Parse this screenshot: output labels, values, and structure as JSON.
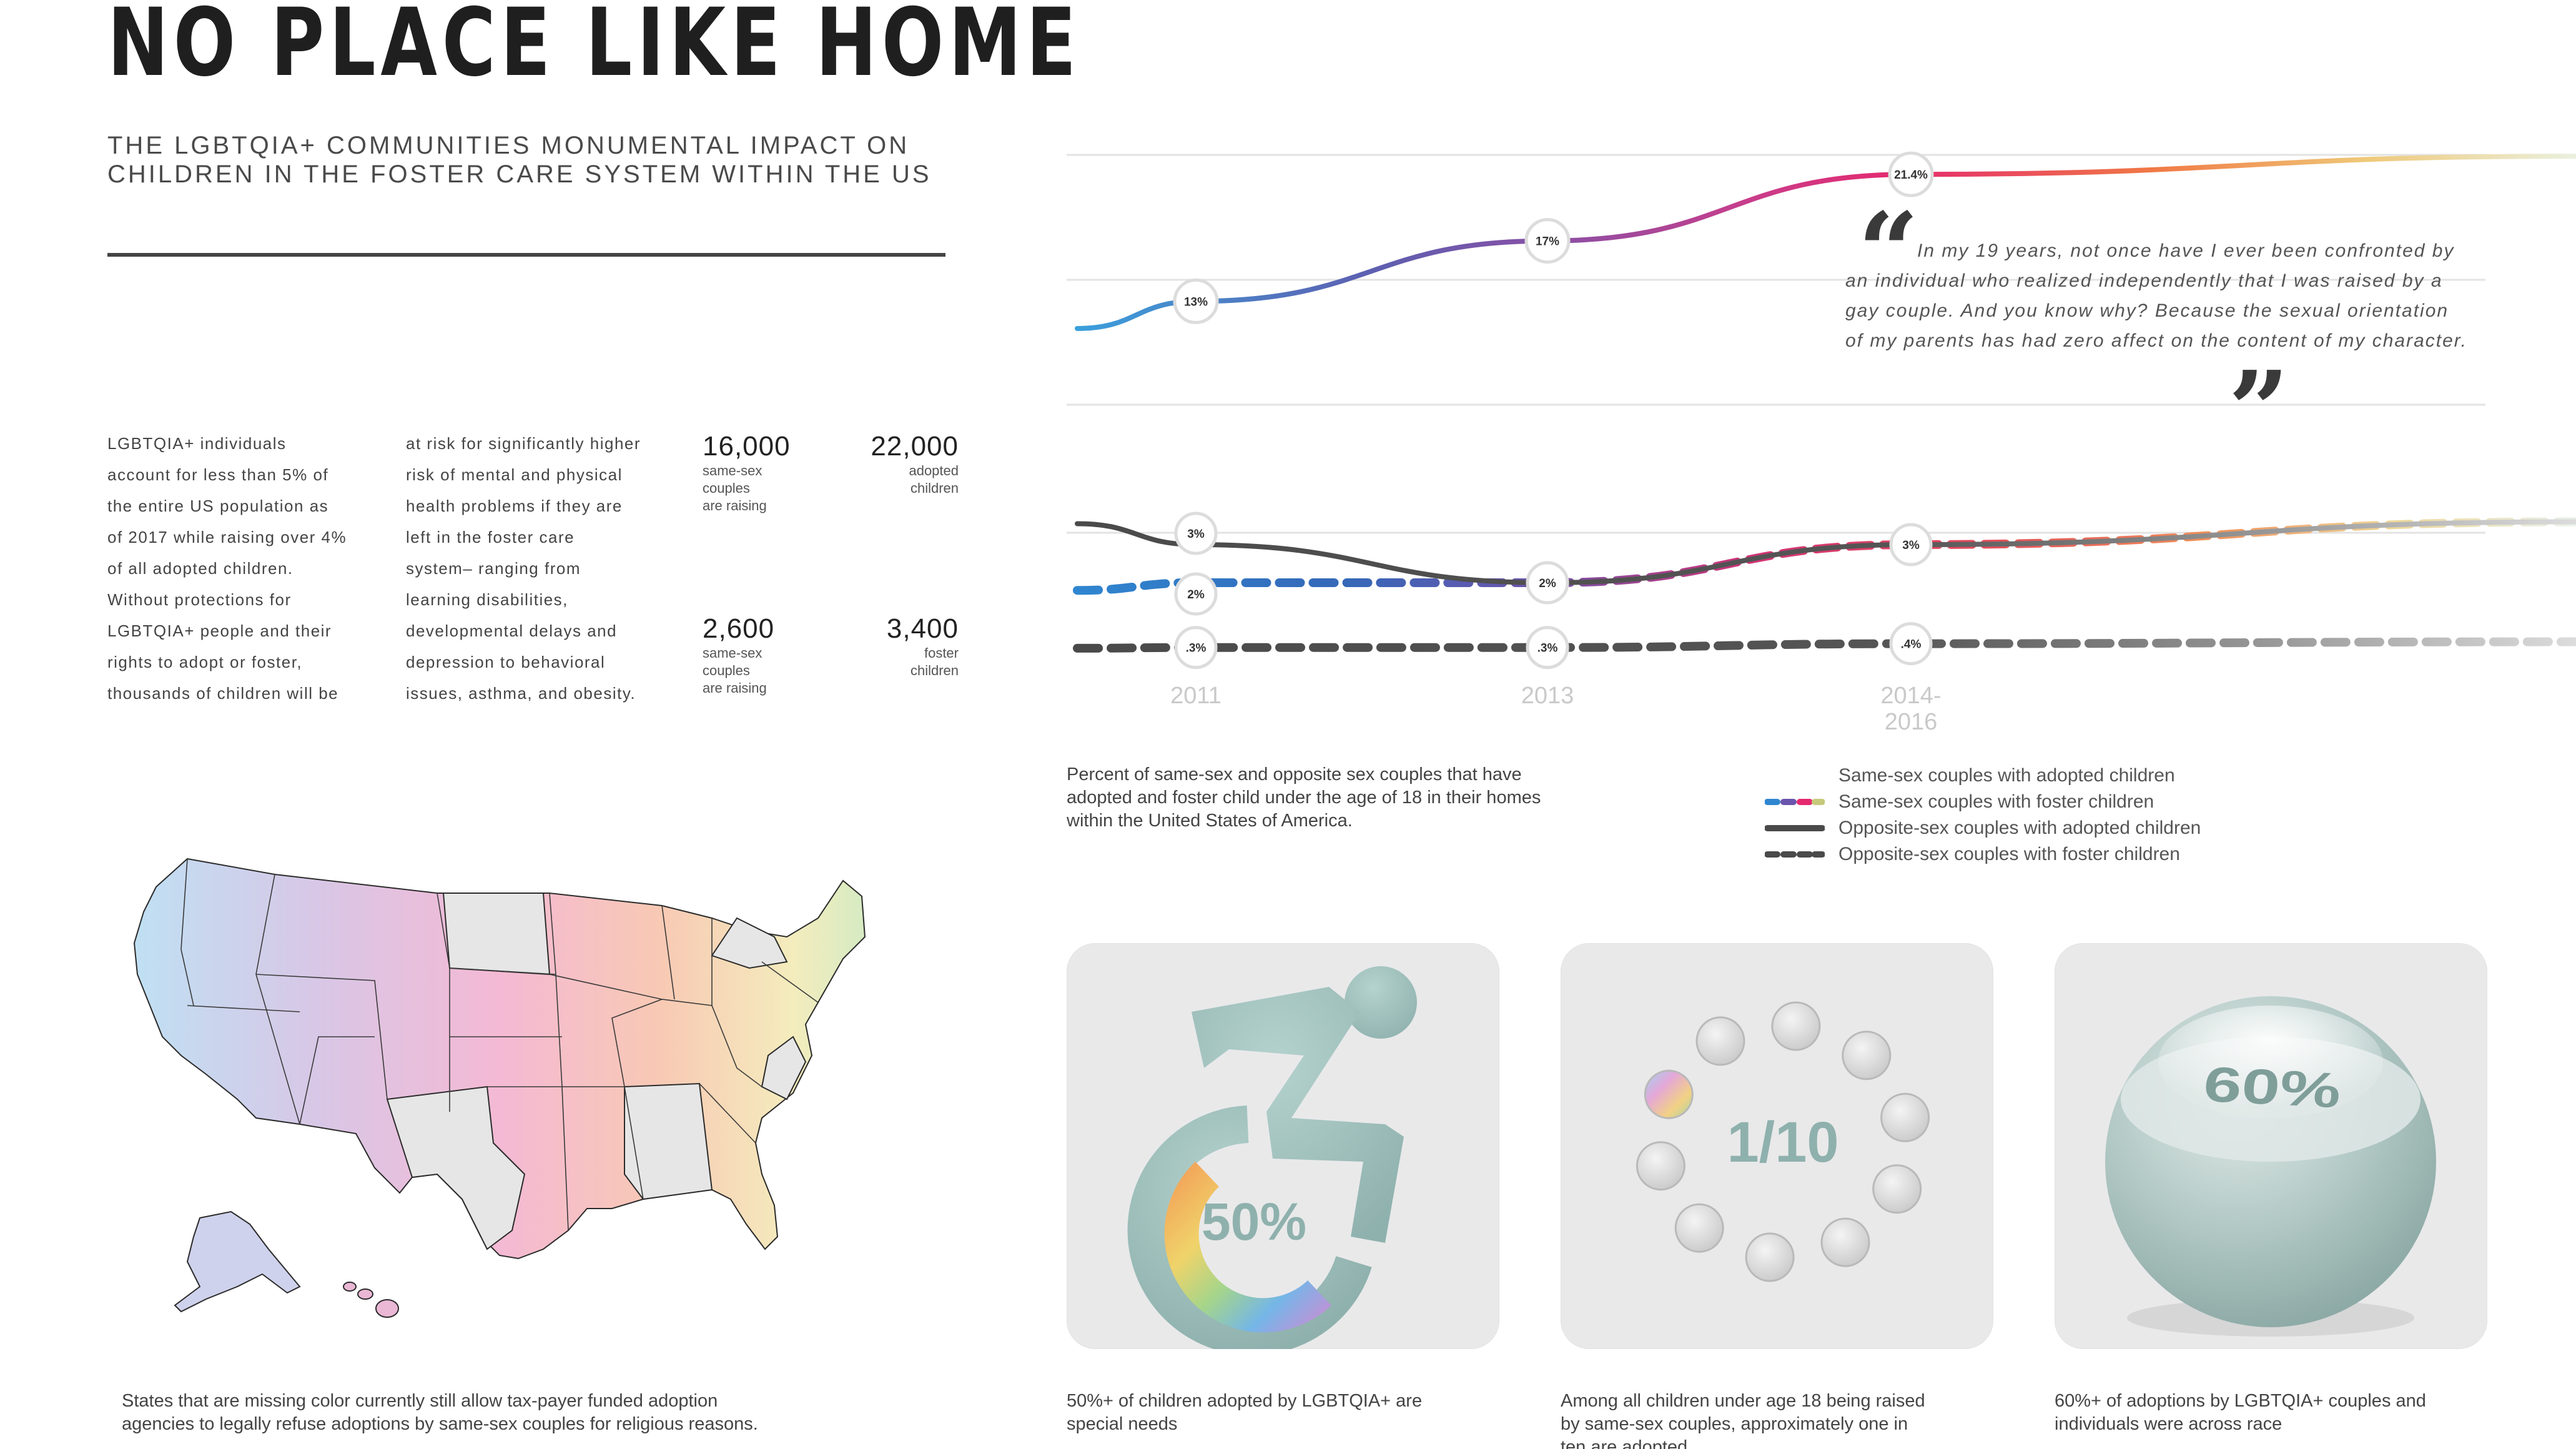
{
  "header": {
    "title": "NO PLACE LIKE HOME",
    "subtitle_line1": "THE LGBTQIA+ COMMUNITIES MONUMENTAL IMPACT ON",
    "subtitle_line2": "CHILDREN IN THE FOSTER CARE SYSTEM WITHIN THE US"
  },
  "intro": {
    "col1": [
      "LGBTQIA+ individuals",
      "account for less than 5% of",
      "the entire US population as",
      "of 2017 while raising over 4%",
      "of all adopted children.",
      "Without protections for",
      "LGBTQIA+ people and their",
      "rights to adopt or foster,",
      "thousands of children will be"
    ],
    "col2": [
      "at risk for significantly higher",
      "risk of mental and physical",
      "health problems if they are",
      "left in the foster care",
      "system– ranging from",
      "learning disabilities,",
      "developmental delays and",
      "depression to behavioral",
      "issues, asthma, and obesity."
    ]
  },
  "stats": [
    {
      "number": "16,000",
      "label": [
        "same-sex",
        "couples",
        "are raising"
      ]
    },
    {
      "number": "22,000",
      "label": [
        "adopted",
        "children"
      ]
    },
    {
      "number": "2,600",
      "label": [
        "same-sex",
        "couples",
        "are raising"
      ]
    },
    {
      "number": "3,400",
      "label": [
        "foster",
        "children"
      ]
    }
  ],
  "map": {
    "caption_line1": "States that are missing color currently still allow tax-payer funded adoption",
    "caption_line2": "agencies to legally refuse adoptions by same-sex couples for religious reasons."
  },
  "quote": {
    "text": "In my 19 years, not once have I ever been confronted by an individual who realized independently that I was raised by a gay couple. And you know why? Because the sexual orientation of my parents has had zero affect on the content of my character.",
    "open_mark": "“",
    "close_mark": "”"
  },
  "chart_data": {
    "type": "line",
    "categories": [
      "2011",
      "2013",
      "2014-2016"
    ],
    "category_labels": [
      "2011",
      "2013",
      "2014-\n2016"
    ],
    "series": [
      {
        "name": "Same-sex couples with adopted children",
        "values": [
          13,
          17,
          21.4
        ],
        "labels": [
          "13%",
          "17%",
          "21.4%"
        ]
      },
      {
        "name": "Same-sex couples with foster children",
        "values": [
          2,
          2,
          3
        ],
        "labels": [
          "2%",
          "2%",
          "3%"
        ]
      },
      {
        "name": "Opposite-sex couples with adopted children",
        "values": [
          3,
          2,
          3
        ],
        "labels": [
          "3%",
          "",
          ""
        ]
      },
      {
        "name": "Opposite-sex couples with foster children",
        "values": [
          0.3,
          0.3,
          0.4
        ],
        "labels": [
          ".3%",
          ".3%",
          ".4%"
        ]
      }
    ],
    "caption": [
      "Percent of same-sex and opposite sex couples that have",
      "adopted and foster child under the age of 18 in their homes",
      "within the United States of America."
    ]
  },
  "legend": [
    {
      "label": "Same-sex couples with adopted children",
      "style": "rainbow-solid"
    },
    {
      "label": "Same-sex couples with foster children",
      "style": "rainbow-dashed"
    },
    {
      "label": "Opposite-sex couples with adopted children",
      "style": "gray-solid"
    },
    {
      "label": "Opposite-sex couples with foster children",
      "style": "gray-dashed"
    }
  ],
  "cards": [
    {
      "value": "50%",
      "caption": [
        "50%+ of children adopted by LGBTQIA+ are",
        "special needs"
      ],
      "icon": "wheelchair-icon",
      "fraction": 0.5
    },
    {
      "value": "1/10",
      "caption": [
        "Among all children under age 18 being raised",
        "by same-sex couples, approximately one in",
        "ten are adopted"
      ],
      "icon": "dots-ring-icon",
      "fraction": 0.1
    },
    {
      "value": "60%",
      "caption": [
        "60%+ of adoptions by LGBTQIA+ couples and",
        "individuals were across race"
      ],
      "icon": "sphere-icon",
      "fraction": 0.6
    }
  ],
  "colors": {
    "accent_pink": "#e5296f",
    "accent_purple": "#8a4fa5",
    "accent_blue": "#3a9ad7",
    "teal_icon": "#9fbfbb",
    "card_bg": "#e9e9ea",
    "unprotected_state": "#e4e4e4"
  }
}
